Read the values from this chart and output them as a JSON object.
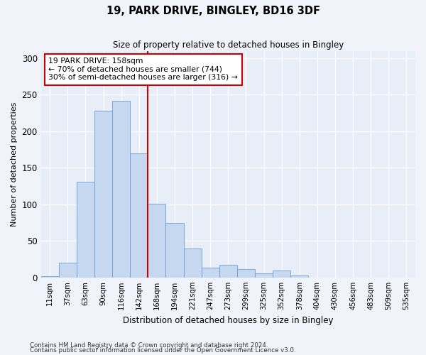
{
  "title": "19, PARK DRIVE, BINGLEY, BD16 3DF",
  "subtitle": "Size of property relative to detached houses in Bingley",
  "xlabel": "Distribution of detached houses by size in Bingley",
  "ylabel": "Number of detached properties",
  "bar_labels": [
    "11sqm",
    "37sqm",
    "63sqm",
    "90sqm",
    "116sqm",
    "142sqm",
    "168sqm",
    "194sqm",
    "221sqm",
    "247sqm",
    "273sqm",
    "299sqm",
    "325sqm",
    "352sqm",
    "378sqm",
    "404sqm",
    "430sqm",
    "456sqm",
    "483sqm",
    "509sqm",
    "535sqm"
  ],
  "bar_values": [
    2,
    20,
    131,
    228,
    242,
    170,
    101,
    75,
    40,
    14,
    17,
    12,
    6,
    10,
    3,
    0,
    0,
    0,
    0,
    0,
    0
  ],
  "bar_color": "#c5d8f0",
  "bar_edge_color": "#6a9fd8",
  "vline_x_index": 6,
  "vline_color": "#cc0000",
  "annotation_text": "19 PARK DRIVE: 158sqm\n← 70% of detached houses are smaller (744)\n30% of semi-detached houses are larger (316) →",
  "annotation_box_color": "#ffffff",
  "annotation_box_edge_color": "#cc0000",
  "ylim": [
    0,
    310
  ],
  "yticks": [
    0,
    50,
    100,
    150,
    200,
    250,
    300
  ],
  "footer_line1": "Contains HM Land Registry data © Crown copyright and database right 2024.",
  "footer_line2": "Contains public sector information licensed under the Open Government Licence v3.0.",
  "bg_color": "#f0f4fa",
  "plot_bg_color": "#e8eef8"
}
